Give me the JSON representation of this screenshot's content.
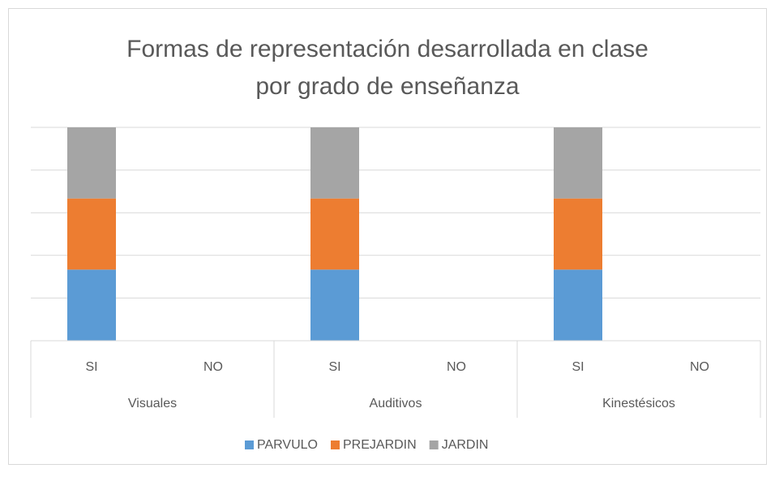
{
  "chart_data": {
    "type": "stacked_bar",
    "title": [
      "Formas de representación desarrollada en clase",
      "por grado de enseñanza"
    ],
    "groups": [
      "Visuales",
      "Auditivos",
      "Kinestésicos"
    ],
    "categories": [
      "SI",
      "NO",
      "SI",
      "NO",
      "SI",
      "NO"
    ],
    "series": [
      {
        "name": "PARVULO",
        "color": "#5b9bd5",
        "values": [
          1,
          0,
          1,
          0,
          1,
          0
        ]
      },
      {
        "name": "PREJARDIN",
        "color": "#ed7d31",
        "values": [
          1,
          0,
          1,
          0,
          1,
          0
        ]
      },
      {
        "name": "JARDIN",
        "color": "#a5a5a5",
        "values": [
          1,
          0,
          1,
          0,
          1,
          0
        ]
      }
    ],
    "ylim": [
      0,
      3
    ],
    "yticks": [
      0,
      0.6,
      1.2,
      1.8,
      2.4,
      3
    ],
    "grid": true,
    "legend": "bottom"
  }
}
